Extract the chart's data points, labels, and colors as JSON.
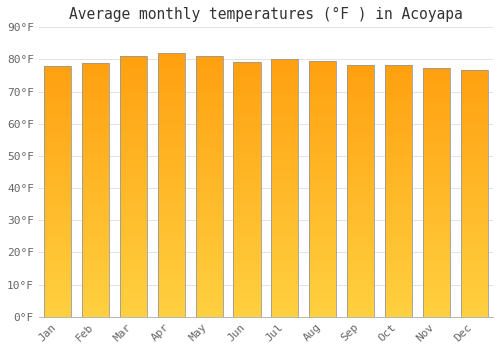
{
  "title": "Average monthly temperatures (°F ) in Acoyapa",
  "months": [
    "Jan",
    "Feb",
    "Mar",
    "Apr",
    "May",
    "Jun",
    "Jul",
    "Aug",
    "Sep",
    "Oct",
    "Nov",
    "Dec"
  ],
  "values": [
    78.1,
    79.0,
    81.0,
    82.0,
    81.0,
    79.3,
    80.1,
    79.5,
    78.4,
    78.3,
    77.2,
    76.8
  ],
  "color_bottom": "#FFD040",
  "color_top": "#FFA010",
  "bar_edge_color": "#999999",
  "ylim": [
    0,
    90
  ],
  "ytick_step": 10,
  "background_color": "#FFFFFF",
  "grid_color": "#DDDDDD",
  "title_fontsize": 10.5,
  "tick_fontsize": 8,
  "bar_width": 0.72,
  "n_gradient_steps": 60
}
